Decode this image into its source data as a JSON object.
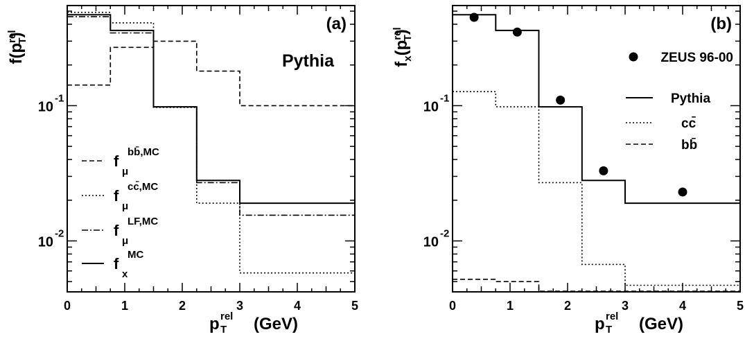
{
  "chart_data": [
    {
      "panel": "(a)",
      "type": "line",
      "yscale": "log",
      "xlim": [
        0,
        5
      ],
      "ylim": [
        0.0042,
        0.55
      ],
      "xticks": [
        "0",
        "1",
        "2",
        "3",
        "4",
        "5"
      ],
      "ylabel_parts": {
        "base": "f(p",
        "sup": "rel",
        "sub": "T",
        "close": ")"
      },
      "xlabel_parts": {
        "base": "p",
        "sup": "rel",
        "sub": "T",
        "unit": "(GeV)"
      },
      "generator": "Pythia",
      "bin_edges": [
        0,
        0.75,
        1.5,
        2.25,
        3.0,
        5.0
      ],
      "series": [
        {
          "label_main": "f",
          "label_sub": "μ",
          "label_sup": "bb̄,MC",
          "style": "dashed",
          "values": [
            0.142,
            0.27,
            0.3,
            0.18,
            0.1
          ]
        },
        {
          "label_main": "f",
          "label_sub": "μ",
          "label_sup": "cc̄,MC",
          "style": "dotted",
          "values": [
            0.49,
            0.41,
            0.097,
            0.019,
            0.0058
          ]
        },
        {
          "label_main": "f",
          "label_sub": "μ",
          "label_sup": "LF,MC",
          "style": "dashdot",
          "values": [
            0.455,
            0.345,
            0.098,
            0.027,
            0.0155
          ]
        },
        {
          "label_main": "f",
          "label_sub": "x",
          "label_sup": "MC",
          "style": "solid",
          "values": [
            0.47,
            0.36,
            0.098,
            0.028,
            0.019
          ]
        }
      ]
    },
    {
      "panel": "(b)",
      "type": "line",
      "yscale": "log",
      "xlim": [
        0,
        5
      ],
      "ylim": [
        0.0042,
        0.55
      ],
      "xticks": [
        "0",
        "1",
        "2",
        "3",
        "4",
        "5"
      ],
      "ylabel_parts": {
        "base": "f",
        "sub0": "x",
        "mid": "(p",
        "sup": "rel",
        "sub": "T",
        "close": ")"
      },
      "xlabel_parts": {
        "base": "p",
        "sup": "rel",
        "sub": "T",
        "unit": "(GeV)"
      },
      "bin_edges": [
        0,
        0.75,
        1.5,
        2.25,
        3.0,
        5.0
      ],
      "data_points": {
        "label": "ZEUS 96-00",
        "x": [
          0.375,
          1.125,
          1.875,
          2.625,
          4.0
        ],
        "y": [
          0.45,
          0.35,
          0.11,
          0.033,
          0.023
        ]
      },
      "series": [
        {
          "label": "Pythia",
          "style": "solid",
          "values": [
            0.47,
            0.36,
            0.098,
            0.028,
            0.019
          ]
        },
        {
          "label": "cc̄",
          "style": "dotted",
          "values": [
            0.127,
            0.098,
            0.027,
            0.0067,
            0.0047
          ]
        },
        {
          "label": "bb̄",
          "style": "dashed",
          "values": [
            0.0052,
            0.005,
            0.004,
            0.004,
            0.004
          ]
        }
      ]
    }
  ]
}
